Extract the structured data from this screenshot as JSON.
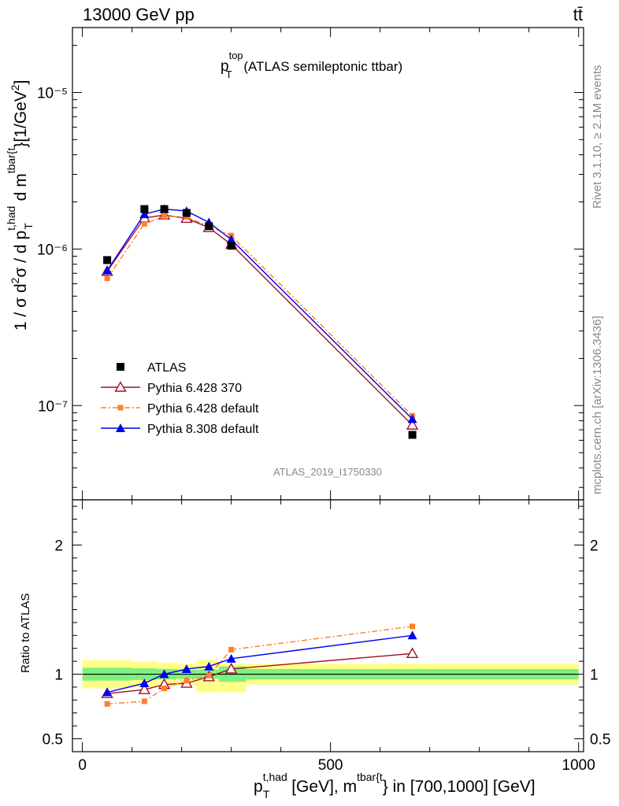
{
  "header": {
    "left": "13000 GeV pp",
    "right": "tt̄"
  },
  "side": {
    "rivet": "Rivet 3.1.10, ≥ 2.1M events",
    "mcplots": "mcplots.cern.ch [arXiv:1306.3436]"
  },
  "plot_title": {
    "main": "p",
    "sup": "top",
    "sub": "T",
    "rest": " (ATLAS semileptonic ttbar)"
  },
  "watermark": "ATLAS_2019_I1750330",
  "colors": {
    "atlas": "#000000",
    "py6_370": "#a0102a",
    "py6_default": "#ff7f2a",
    "py8": "#0000ee",
    "band_inner": "#7ff07f",
    "band_outer": "#ffff88"
  },
  "chart_data": [
    {
      "type": "line",
      "panel": "main",
      "ylabel": "1 / σ d²σ / d p_T^{t,had} d m^{tbar{t}} [1/GeV²]",
      "yscale": "log",
      "ylim": [
        2.5e-08,
        2.6e-05
      ],
      "xlim": [
        -20,
        1010
      ],
      "ytick_labels": [
        "10⁻⁷",
        "10⁻⁶",
        "10⁻⁵"
      ],
      "legend_position": "lower-left",
      "series": [
        {
          "name": "ATLAS",
          "marker": "square",
          "x": [
            50,
            125,
            165,
            210,
            255,
            300,
            665
          ],
          "y": [
            8.5e-07,
            1.8e-06,
            1.8e-06,
            1.7e-06,
            1.4e-06,
            1.05e-06,
            6.5e-08
          ]
        },
        {
          "name": "Pythia 6.428 370",
          "marker": "open-triangle",
          "x": [
            50,
            125,
            165,
            210,
            255,
            300,
            665
          ],
          "y": [
            7.2e-07,
            1.58e-06,
            1.65e-06,
            1.57e-06,
            1.37e-06,
            1.07e-06,
            7.5e-08
          ]
        },
        {
          "name": "Pythia 6.428 default",
          "marker": "square-small",
          "x": [
            50,
            125,
            165,
            210,
            255,
            300,
            665
          ],
          "y": [
            6.5e-07,
            1.45e-06,
            1.62e-06,
            1.6e-06,
            1.4e-06,
            1.22e-06,
            8.6e-08
          ]
        },
        {
          "name": "Pythia 8.308 default",
          "marker": "triangle",
          "x": [
            50,
            125,
            165,
            210,
            255,
            300,
            665
          ],
          "y": [
            7.3e-07,
            1.67e-06,
            1.8e-06,
            1.75e-06,
            1.48e-06,
            1.15e-06,
            8.2e-08
          ]
        }
      ]
    },
    {
      "type": "line",
      "panel": "ratio",
      "ylabel": "Ratio to ATLAS",
      "xlabel": "p_T^{t,had} [GeV], m^{tbar{t}} in [700,1000] [GeV]",
      "ylim": [
        0.4,
        2.35
      ],
      "xlim": [
        -20,
        1010
      ],
      "ytick_labels": [
        "0.5",
        "1",
        "2"
      ],
      "xtick_labels": [
        "0",
        "500",
        "1000"
      ],
      "bands": {
        "edges": [
          0,
          100,
          150,
          190,
          230,
          275,
          330,
          1000
        ],
        "inner": [
          [
            0.95,
            1.05
          ],
          [
            0.955,
            1.045
          ],
          [
            0.96,
            1.04
          ],
          [
            0.965,
            1.035
          ],
          [
            0.965,
            1.035
          ],
          [
            0.94,
            1.06
          ],
          [
            0.96,
            1.04
          ]
        ],
        "outer": [
          [
            0.89,
            1.11
          ],
          [
            0.9,
            1.1
          ],
          [
            0.91,
            1.09
          ],
          [
            0.92,
            1.08
          ],
          [
            0.86,
            1.11
          ],
          [
            0.86,
            1.08
          ],
          [
            0.92,
            1.08
          ]
        ]
      },
      "series": [
        {
          "name": "Pythia 6.428 370",
          "x": [
            50,
            125,
            165,
            210,
            255,
            300,
            665
          ],
          "y": [
            0.85,
            0.88,
            0.92,
            0.93,
            0.98,
            1.04,
            1.16
          ]
        },
        {
          "name": "Pythia 6.428 default",
          "x": [
            50,
            125,
            165,
            210,
            255,
            300,
            665
          ],
          "y": [
            0.77,
            0.79,
            0.89,
            0.95,
            0.99,
            1.19,
            1.37
          ]
        },
        {
          "name": "Pythia 8.308 default",
          "x": [
            50,
            125,
            165,
            210,
            255,
            300,
            665
          ],
          "y": [
            0.86,
            0.93,
            1.0,
            1.04,
            1.06,
            1.12,
            1.3
          ]
        }
      ]
    }
  ]
}
